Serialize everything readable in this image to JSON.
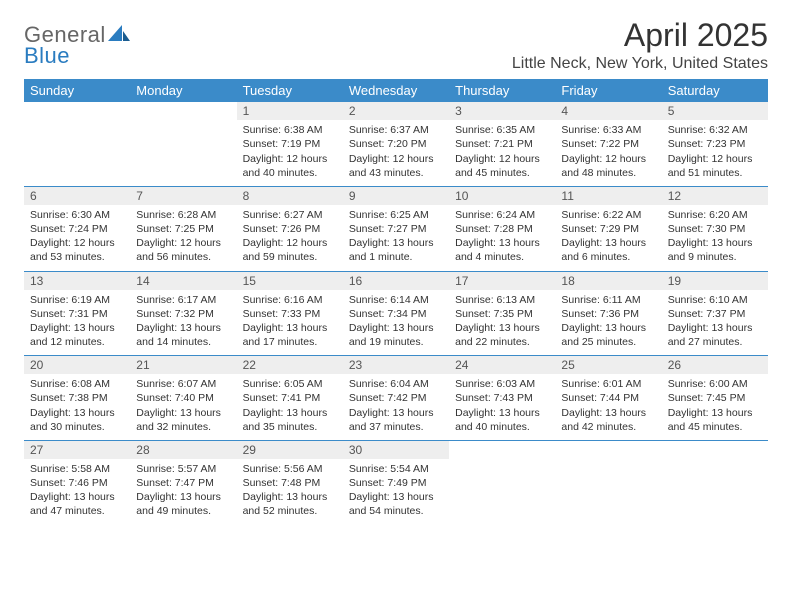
{
  "brand": {
    "name1": "General",
    "name2": "Blue"
  },
  "title": "April 2025",
  "location": "Little Neck, New York, United States",
  "colors": {
    "header_bg": "#3b8bc9",
    "header_text": "#ffffff",
    "daynum_bg": "#eeeeee",
    "text": "#333333",
    "border": "#3b8bc9",
    "brand_gray": "#666666",
    "brand_blue": "#2a7cc0"
  },
  "typography": {
    "title_fontsize": 32,
    "location_fontsize": 16,
    "header_fontsize": 13,
    "daynum_fontsize": 12,
    "body_fontsize": 10.5
  },
  "weekdays": [
    "Sunday",
    "Monday",
    "Tuesday",
    "Wednesday",
    "Thursday",
    "Friday",
    "Saturday"
  ],
  "weeks": [
    [
      {
        "day": "",
        "sunrise": "",
        "sunset": "",
        "daylight": ""
      },
      {
        "day": "",
        "sunrise": "",
        "sunset": "",
        "daylight": ""
      },
      {
        "day": "1",
        "sunrise": "Sunrise: 6:38 AM",
        "sunset": "Sunset: 7:19 PM",
        "daylight": "Daylight: 12 hours and 40 minutes."
      },
      {
        "day": "2",
        "sunrise": "Sunrise: 6:37 AM",
        "sunset": "Sunset: 7:20 PM",
        "daylight": "Daylight: 12 hours and 43 minutes."
      },
      {
        "day": "3",
        "sunrise": "Sunrise: 6:35 AM",
        "sunset": "Sunset: 7:21 PM",
        "daylight": "Daylight: 12 hours and 45 minutes."
      },
      {
        "day": "4",
        "sunrise": "Sunrise: 6:33 AM",
        "sunset": "Sunset: 7:22 PM",
        "daylight": "Daylight: 12 hours and 48 minutes."
      },
      {
        "day": "5",
        "sunrise": "Sunrise: 6:32 AM",
        "sunset": "Sunset: 7:23 PM",
        "daylight": "Daylight: 12 hours and 51 minutes."
      }
    ],
    [
      {
        "day": "6",
        "sunrise": "Sunrise: 6:30 AM",
        "sunset": "Sunset: 7:24 PM",
        "daylight": "Daylight: 12 hours and 53 minutes."
      },
      {
        "day": "7",
        "sunrise": "Sunrise: 6:28 AM",
        "sunset": "Sunset: 7:25 PM",
        "daylight": "Daylight: 12 hours and 56 minutes."
      },
      {
        "day": "8",
        "sunrise": "Sunrise: 6:27 AM",
        "sunset": "Sunset: 7:26 PM",
        "daylight": "Daylight: 12 hours and 59 minutes."
      },
      {
        "day": "9",
        "sunrise": "Sunrise: 6:25 AM",
        "sunset": "Sunset: 7:27 PM",
        "daylight": "Daylight: 13 hours and 1 minute."
      },
      {
        "day": "10",
        "sunrise": "Sunrise: 6:24 AM",
        "sunset": "Sunset: 7:28 PM",
        "daylight": "Daylight: 13 hours and 4 minutes."
      },
      {
        "day": "11",
        "sunrise": "Sunrise: 6:22 AM",
        "sunset": "Sunset: 7:29 PM",
        "daylight": "Daylight: 13 hours and 6 minutes."
      },
      {
        "day": "12",
        "sunrise": "Sunrise: 6:20 AM",
        "sunset": "Sunset: 7:30 PM",
        "daylight": "Daylight: 13 hours and 9 minutes."
      }
    ],
    [
      {
        "day": "13",
        "sunrise": "Sunrise: 6:19 AM",
        "sunset": "Sunset: 7:31 PM",
        "daylight": "Daylight: 13 hours and 12 minutes."
      },
      {
        "day": "14",
        "sunrise": "Sunrise: 6:17 AM",
        "sunset": "Sunset: 7:32 PM",
        "daylight": "Daylight: 13 hours and 14 minutes."
      },
      {
        "day": "15",
        "sunrise": "Sunrise: 6:16 AM",
        "sunset": "Sunset: 7:33 PM",
        "daylight": "Daylight: 13 hours and 17 minutes."
      },
      {
        "day": "16",
        "sunrise": "Sunrise: 6:14 AM",
        "sunset": "Sunset: 7:34 PM",
        "daylight": "Daylight: 13 hours and 19 minutes."
      },
      {
        "day": "17",
        "sunrise": "Sunrise: 6:13 AM",
        "sunset": "Sunset: 7:35 PM",
        "daylight": "Daylight: 13 hours and 22 minutes."
      },
      {
        "day": "18",
        "sunrise": "Sunrise: 6:11 AM",
        "sunset": "Sunset: 7:36 PM",
        "daylight": "Daylight: 13 hours and 25 minutes."
      },
      {
        "day": "19",
        "sunrise": "Sunrise: 6:10 AM",
        "sunset": "Sunset: 7:37 PM",
        "daylight": "Daylight: 13 hours and 27 minutes."
      }
    ],
    [
      {
        "day": "20",
        "sunrise": "Sunrise: 6:08 AM",
        "sunset": "Sunset: 7:38 PM",
        "daylight": "Daylight: 13 hours and 30 minutes."
      },
      {
        "day": "21",
        "sunrise": "Sunrise: 6:07 AM",
        "sunset": "Sunset: 7:40 PM",
        "daylight": "Daylight: 13 hours and 32 minutes."
      },
      {
        "day": "22",
        "sunrise": "Sunrise: 6:05 AM",
        "sunset": "Sunset: 7:41 PM",
        "daylight": "Daylight: 13 hours and 35 minutes."
      },
      {
        "day": "23",
        "sunrise": "Sunrise: 6:04 AM",
        "sunset": "Sunset: 7:42 PM",
        "daylight": "Daylight: 13 hours and 37 minutes."
      },
      {
        "day": "24",
        "sunrise": "Sunrise: 6:03 AM",
        "sunset": "Sunset: 7:43 PM",
        "daylight": "Daylight: 13 hours and 40 minutes."
      },
      {
        "day": "25",
        "sunrise": "Sunrise: 6:01 AM",
        "sunset": "Sunset: 7:44 PM",
        "daylight": "Daylight: 13 hours and 42 minutes."
      },
      {
        "day": "26",
        "sunrise": "Sunrise: 6:00 AM",
        "sunset": "Sunset: 7:45 PM",
        "daylight": "Daylight: 13 hours and 45 minutes."
      }
    ],
    [
      {
        "day": "27",
        "sunrise": "Sunrise: 5:58 AM",
        "sunset": "Sunset: 7:46 PM",
        "daylight": "Daylight: 13 hours and 47 minutes."
      },
      {
        "day": "28",
        "sunrise": "Sunrise: 5:57 AM",
        "sunset": "Sunset: 7:47 PM",
        "daylight": "Daylight: 13 hours and 49 minutes."
      },
      {
        "day": "29",
        "sunrise": "Sunrise: 5:56 AM",
        "sunset": "Sunset: 7:48 PM",
        "daylight": "Daylight: 13 hours and 52 minutes."
      },
      {
        "day": "30",
        "sunrise": "Sunrise: 5:54 AM",
        "sunset": "Sunset: 7:49 PM",
        "daylight": "Daylight: 13 hours and 54 minutes."
      },
      {
        "day": "",
        "sunrise": "",
        "sunset": "",
        "daylight": ""
      },
      {
        "day": "",
        "sunrise": "",
        "sunset": "",
        "daylight": ""
      },
      {
        "day": "",
        "sunrise": "",
        "sunset": "",
        "daylight": ""
      }
    ]
  ]
}
